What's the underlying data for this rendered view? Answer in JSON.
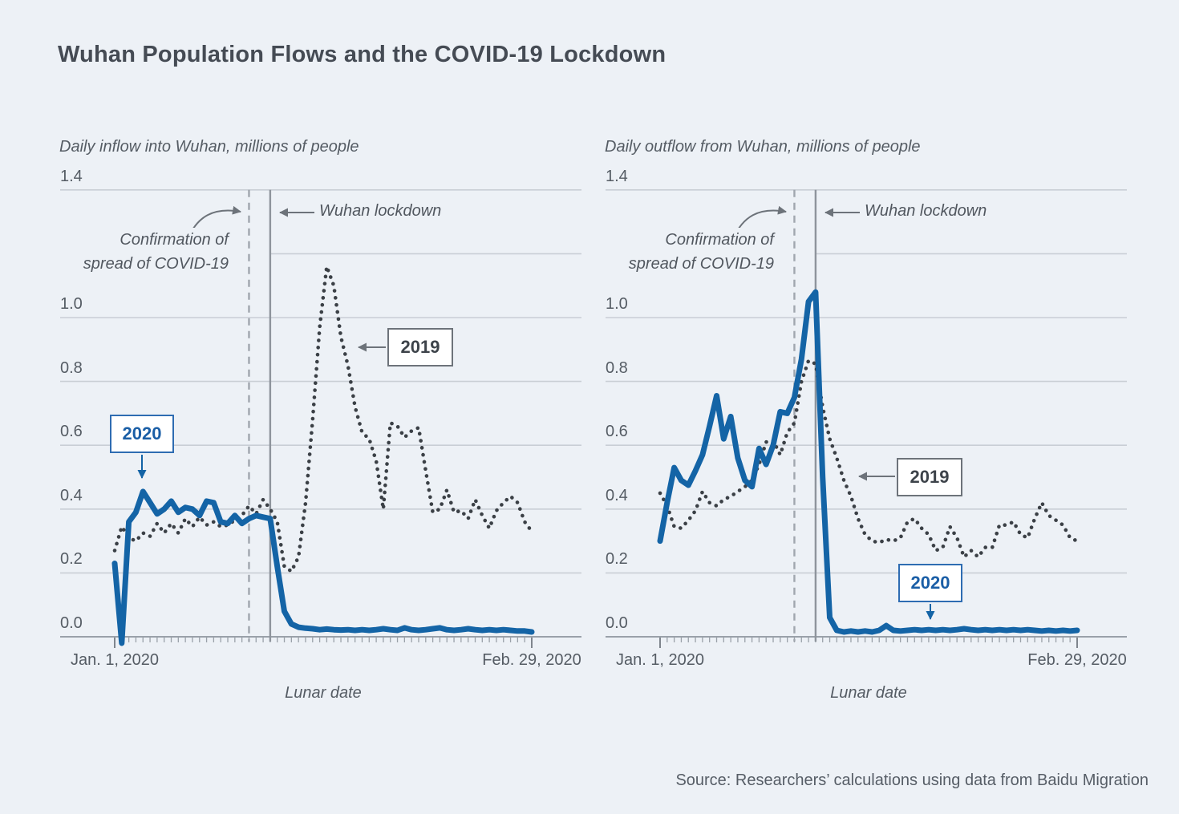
{
  "title": "Wuhan Population Flows and the COVID-19 Lockdown",
  "source": "Source: Researchers’ calculations using data from Baidu Migration",
  "colors": {
    "background": "#edf1f6",
    "line_2020": "#1464a6",
    "line_2019": "#3b4046",
    "grid": "#c9ced5",
    "axis": "#9aa1a9",
    "annotation_gray": "#6d737a",
    "label_2020_border": "#2e6cb2",
    "label_2019_border": "#6d737a"
  },
  "chart_data": [
    {
      "type": "line",
      "title": "Daily inflow into Wuhan, millions of people",
      "xlabel": "Lunar date",
      "x_ticks": [
        "Jan. 1, 2020",
        "Feb. 29, 2020"
      ],
      "y_ticks": [
        1.4,
        1.2,
        1.0,
        0.8,
        0.6,
        0.4,
        0.2,
        0.0
      ],
      "y_tick_labels": [
        "1.4",
        "",
        "1.0",
        "0.8",
        "0.6",
        "0.4",
        "0.2",
        "0.0"
      ],
      "ylim": [
        0,
        1.4
      ],
      "grid": "horizontal",
      "annotations": {
        "confirmation": {
          "label": "Confirmation of spread of COVID-19",
          "label_lines": [
            "Confirmation of",
            "spread of COVID-19"
          ],
          "day_index": 19,
          "line_style": "dashed"
        },
        "lockdown": {
          "label": "Wuhan lockdown",
          "day_index": 22,
          "line_style": "solid"
        }
      },
      "series": [
        {
          "name": "2019",
          "style": "dotted",
          "values": [
            0.27,
            0.345,
            0.31,
            0.3,
            0.325,
            0.315,
            0.355,
            0.325,
            0.355,
            0.325,
            0.37,
            0.345,
            0.375,
            0.35,
            0.36,
            0.345,
            0.35,
            0.365,
            0.38,
            0.41,
            0.385,
            0.43,
            0.4,
            0.36,
            0.22,
            0.205,
            0.25,
            0.42,
            0.68,
            0.97,
            1.16,
            1.1,
            0.94,
            0.85,
            0.72,
            0.64,
            0.62,
            0.55,
            0.4,
            0.67,
            0.66,
            0.625,
            0.645,
            0.655,
            0.52,
            0.39,
            0.4,
            0.46,
            0.39,
            0.395,
            0.37,
            0.43,
            0.38,
            0.34,
            0.395,
            0.42,
            0.44,
            0.42,
            0.36,
            0.33
          ]
        },
        {
          "name": "2020",
          "style": "solid",
          "values": [
            0.23,
            -0.02,
            0.36,
            0.39,
            0.455,
            0.42,
            0.385,
            0.4,
            0.425,
            0.39,
            0.405,
            0.4,
            0.38,
            0.425,
            0.42,
            0.36,
            0.355,
            0.38,
            0.355,
            0.37,
            0.38,
            0.375,
            0.37,
            0.22,
            0.08,
            0.04,
            0.03,
            0.027,
            0.025,
            0.022,
            0.024,
            0.022,
            0.021,
            0.022,
            0.02,
            0.022,
            0.02,
            0.022,
            0.025,
            0.022,
            0.02,
            0.028,
            0.022,
            0.02,
            0.022,
            0.025,
            0.028,
            0.022,
            0.02,
            0.022,
            0.025,
            0.022,
            0.02,
            0.022,
            0.02,
            0.022,
            0.02,
            0.018,
            0.018,
            0.015
          ]
        }
      ]
    },
    {
      "type": "line",
      "title": "Daily outflow from Wuhan, millions of people",
      "xlabel": "Lunar date",
      "x_ticks": [
        "Jan. 1, 2020",
        "Feb. 29, 2020"
      ],
      "y_ticks": [
        1.4,
        1.2,
        1.0,
        0.8,
        0.6,
        0.4,
        0.2,
        0.0
      ],
      "y_tick_labels": [
        "1.4",
        "",
        "1.0",
        "0.8",
        "0.6",
        "0.4",
        "0.2",
        "0.0"
      ],
      "ylim": [
        0,
        1.4
      ],
      "grid": "horizontal",
      "annotations": {
        "confirmation": {
          "label": "Confirmation of spread of COVID-19",
          "label_lines": [
            "Confirmation of",
            "spread of COVID-19"
          ],
          "day_index": 19,
          "line_style": "dashed"
        },
        "lockdown": {
          "label": "Wuhan lockdown",
          "day_index": 22,
          "line_style": "solid"
        }
      },
      "series": [
        {
          "name": "2019",
          "style": "dotted",
          "values": [
            0.45,
            0.41,
            0.345,
            0.34,
            0.365,
            0.395,
            0.455,
            0.42,
            0.41,
            0.43,
            0.44,
            0.455,
            0.47,
            0.49,
            0.54,
            0.61,
            0.615,
            0.57,
            0.64,
            0.67,
            0.8,
            0.865,
            0.855,
            0.72,
            0.62,
            0.56,
            0.49,
            0.44,
            0.37,
            0.32,
            0.3,
            0.295,
            0.305,
            0.3,
            0.31,
            0.36,
            0.37,
            0.34,
            0.32,
            0.27,
            0.28,
            0.345,
            0.31,
            0.25,
            0.27,
            0.25,
            0.28,
            0.28,
            0.35,
            0.35,
            0.36,
            0.32,
            0.31,
            0.37,
            0.42,
            0.38,
            0.365,
            0.35,
            0.31,
            0.3
          ]
        },
        {
          "name": "2020",
          "style": "solid",
          "values": [
            0.3,
            0.42,
            0.53,
            0.49,
            0.475,
            0.52,
            0.57,
            0.66,
            0.755,
            0.62,
            0.69,
            0.56,
            0.49,
            0.47,
            0.59,
            0.54,
            0.6,
            0.705,
            0.7,
            0.75,
            0.87,
            1.05,
            1.08,
            0.5,
            0.06,
            0.02,
            0.015,
            0.018,
            0.015,
            0.018,
            0.015,
            0.02,
            0.035,
            0.02,
            0.018,
            0.02,
            0.022,
            0.02,
            0.022,
            0.02,
            0.022,
            0.02,
            0.022,
            0.025,
            0.022,
            0.02,
            0.022,
            0.02,
            0.022,
            0.02,
            0.022,
            0.02,
            0.022,
            0.02,
            0.018,
            0.02,
            0.018,
            0.02,
            0.018,
            0.02
          ]
        }
      ]
    }
  ]
}
